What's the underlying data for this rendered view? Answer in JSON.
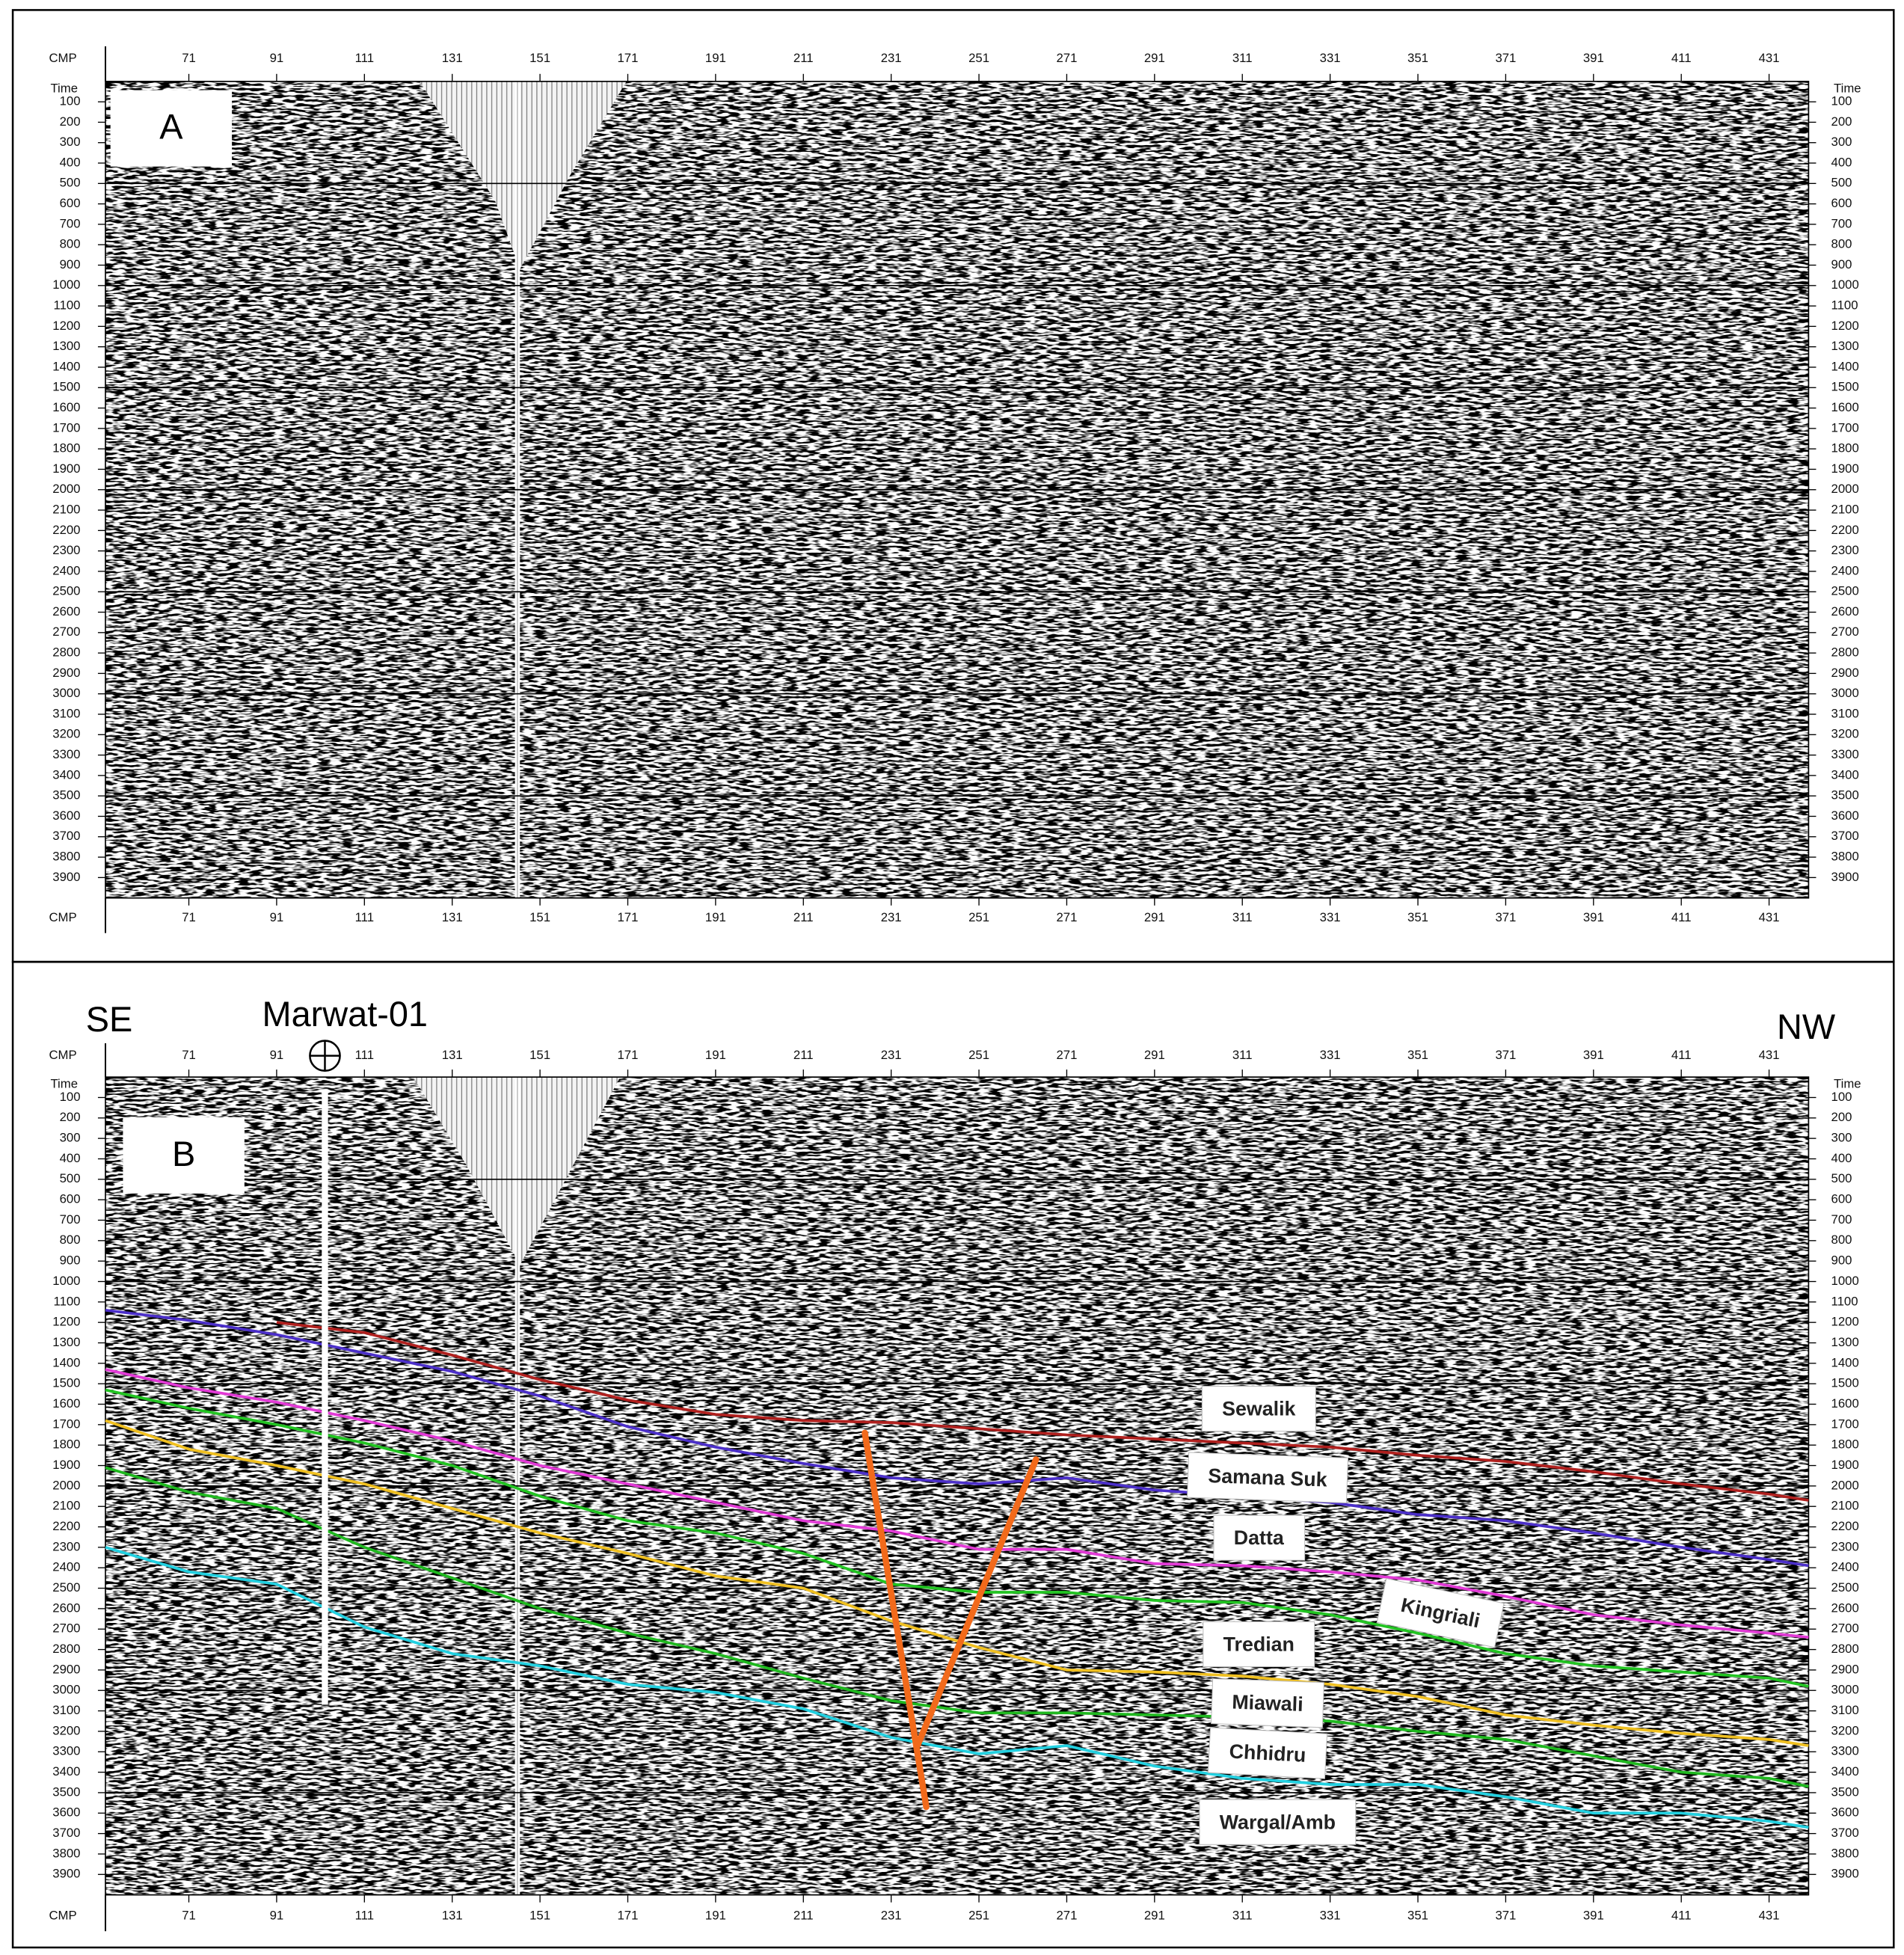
{
  "chart_data": [
    {
      "type": "seismic-section",
      "panel_label": "A",
      "x_label": "CMP",
      "y_label": "Time",
      "xlim": [
        52,
        440
      ],
      "ylim": [
        0,
        4000
      ],
      "y_inverted": true,
      "xticks": [
        71,
        91,
        111,
        131,
        151,
        171,
        191,
        211,
        231,
        251,
        271,
        291,
        311,
        331,
        351,
        371,
        391,
        411,
        431
      ],
      "yticks": [
        100,
        200,
        300,
        400,
        500,
        600,
        700,
        800,
        900,
        1000,
        1100,
        1200,
        1300,
        1400,
        1500,
        1600,
        1700,
        1800,
        1900,
        2000,
        2100,
        2200,
        2300,
        2400,
        2500,
        2600,
        2700,
        2800,
        2900,
        3000,
        3100,
        3200,
        3300,
        3400,
        3500,
        3600,
        3700,
        3800,
        3900
      ],
      "gridlines": [
        500,
        1000,
        1500,
        2000,
        2500,
        3000,
        3500
      ]
    },
    {
      "type": "seismic-section",
      "panel_label": "B",
      "x_label": "CMP",
      "y_label": "Time",
      "xlim": [
        52,
        440
      ],
      "ylim": [
        0,
        4000
      ],
      "y_inverted": true,
      "xticks": [
        71,
        91,
        111,
        131,
        151,
        171,
        191,
        211,
        231,
        251,
        271,
        291,
        311,
        331,
        351,
        371,
        391,
        411,
        431
      ],
      "yticks": [
        100,
        200,
        300,
        400,
        500,
        600,
        700,
        800,
        900,
        1000,
        1100,
        1200,
        1300,
        1400,
        1500,
        1600,
        1700,
        1800,
        1900,
        2000,
        2100,
        2200,
        2300,
        2400,
        2500,
        2600,
        2700,
        2800,
        2900,
        3000,
        3100,
        3200,
        3300,
        3400,
        3500,
        3600,
        3700,
        3800,
        3900
      ],
      "gridlines": [
        500,
        1000,
        1500,
        2000,
        2500,
        3000,
        3500
      ],
      "direction_labels": [
        "SE",
        "NW"
      ],
      "well": {
        "name": "Marwat-01",
        "x": 102,
        "top": 60,
        "bottom": 3070
      },
      "x": [
        52,
        71,
        91,
        111,
        131,
        151,
        171,
        191,
        211,
        231,
        251,
        271,
        291,
        311,
        331,
        351,
        371,
        391,
        411,
        431,
        440
      ],
      "horizons": [
        {
          "color": "#b0201e",
          "values": [
            null,
            null,
            1200,
            1250,
            1360,
            1480,
            1580,
            1650,
            1680,
            1690,
            1720,
            1750,
            1770,
            1790,
            1810,
            1850,
            1880,
            1930,
            1990,
            2040,
            2070
          ]
        },
        {
          "color": "#4b2fc9",
          "values": [
            1140,
            1190,
            1260,
            1350,
            1440,
            1560,
            1710,
            1810,
            1890,
            1960,
            1990,
            1960,
            2020,
            2050,
            2080,
            2140,
            2170,
            2230,
            2300,
            2360,
            2390
          ]
        },
        {
          "color": "#e23ad6",
          "values": [
            1430,
            1520,
            1590,
            1680,
            1780,
            1900,
            1990,
            2080,
            2170,
            2220,
            2310,
            2310,
            2380,
            2390,
            2420,
            2460,
            2540,
            2630,
            2680,
            2720,
            2740
          ]
        },
        {
          "color": "#22c422",
          "values": [
            1530,
            1620,
            1700,
            1790,
            1900,
            2050,
            2170,
            2230,
            2330,
            2480,
            2520,
            2520,
            2560,
            2570,
            2630,
            2720,
            2820,
            2880,
            2910,
            2940,
            2980
          ]
        },
        {
          "color": "#f0c020",
          "values": [
            1680,
            1820,
            1900,
            1990,
            2110,
            2230,
            2330,
            2440,
            2500,
            2660,
            2790,
            2900,
            2910,
            2930,
            2970,
            3030,
            3120,
            3170,
            3210,
            3240,
            3270
          ]
        },
        {
          "color": "#1fb81f",
          "values": [
            1910,
            2030,
            2110,
            2300,
            2450,
            2600,
            2720,
            2820,
            2940,
            3050,
            3110,
            3110,
            3120,
            3130,
            3150,
            3200,
            3240,
            3320,
            3400,
            3430,
            3470
          ]
        },
        {
          "color": "#22d0e0",
          "values": [
            2300,
            2420,
            2480,
            2690,
            2820,
            2880,
            2970,
            3010,
            3090,
            3230,
            3310,
            3270,
            3370,
            3430,
            3460,
            3460,
            3520,
            3600,
            3600,
            3640,
            3670
          ]
        }
      ],
      "faults": [
        {
          "color": "#f26a1b",
          "x": [
            225,
            239
          ],
          "values": [
            1740,
            3570
          ]
        },
        {
          "color": "#f26a1b",
          "x": [
            264,
            237
          ],
          "values": [
            1870,
            3270
          ]
        }
      ],
      "formation_labels": [
        "Sewalik",
        "Samana Suk",
        "Datta",
        "Kingriali",
        "Tredian",
        "Miawali",
        "Chhidru",
        "Wargal/Amb"
      ]
    }
  ]
}
